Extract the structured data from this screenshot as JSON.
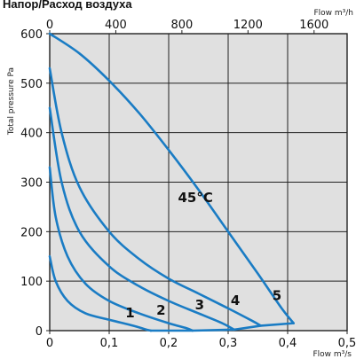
{
  "chart_data": {
    "type": "line",
    "title": "Напор/Расход воздуха",
    "ylabel": "Total pressure Pa",
    "xlabel": "Flow m³/s",
    "x2label": "Flow m³/h",
    "xlim": [
      0,
      0.5
    ],
    "ylim": [
      0,
      600
    ],
    "x2lim": [
      0,
      1800
    ],
    "x_ticks": [
      "0",
      "0,1",
      "0,2",
      "0,3",
      "0,4",
      "0,5"
    ],
    "x_tick_values": [
      0,
      0.1,
      0.2,
      0.3,
      0.4,
      0.5
    ],
    "x2_ticks": [
      "0",
      "400",
      "800",
      "1200",
      "1600"
    ],
    "x2_tick_values": [
      0,
      400,
      800,
      1200,
      1600
    ],
    "y_ticks": [
      "0",
      "100",
      "200",
      "300",
      "400",
      "500",
      "600"
    ],
    "y_tick_values": [
      0,
      100,
      200,
      300,
      400,
      500,
      600
    ],
    "grid": true,
    "series": [
      {
        "name": "1",
        "color": "#1a7cc4",
        "x": [
          0,
          0.01,
          0.03,
          0.06,
          0.1,
          0.14,
          0.16,
          0.17
        ],
        "y": [
          150,
          100,
          60,
          35,
          22,
          10,
          3,
          0
        ]
      },
      {
        "name": "2",
        "color": "#1a7cc4",
        "x": [
          0,
          0.01,
          0.03,
          0.06,
          0.1,
          0.15,
          0.2,
          0.23,
          0.24
        ],
        "y": [
          330,
          230,
          150,
          95,
          60,
          35,
          15,
          5,
          0
        ]
      },
      {
        "name": "3",
        "color": "#1a7cc4",
        "x": [
          0,
          0.02,
          0.05,
          0.1,
          0.15,
          0.2,
          0.25,
          0.29,
          0.31
        ],
        "y": [
          450,
          300,
          200,
          130,
          90,
          60,
          35,
          15,
          2
        ]
      },
      {
        "name": "4",
        "color": "#1a7cc4",
        "x": [
          0,
          0.02,
          0.05,
          0.1,
          0.15,
          0.2,
          0.25,
          0.3,
          0.34,
          0.355
        ],
        "y": [
          530,
          400,
          290,
          200,
          145,
          105,
          75,
          45,
          20,
          10
        ]
      },
      {
        "name": "5",
        "color": "#1a7cc4",
        "x": [
          0,
          0.05,
          0.1,
          0.15,
          0.2,
          0.25,
          0.3,
          0.35,
          0.39,
          0.41
        ],
        "y": [
          600,
          560,
          505,
          440,
          365,
          285,
          200,
          115,
          45,
          15
        ]
      }
    ],
    "annotations": [
      {
        "text": "1",
        "x": 0.135,
        "y": 27
      },
      {
        "text": "2",
        "x": 0.187,
        "y": 32
      },
      {
        "text": "3",
        "x": 0.252,
        "y": 43
      },
      {
        "text": "4",
        "x": 0.312,
        "y": 52
      },
      {
        "text": "5",
        "x": 0.382,
        "y": 62
      },
      {
        "text": "45°C",
        "x": 0.245,
        "y": 260
      }
    ],
    "colors": {
      "plot_background": "#e0e0e0",
      "grid": "#222222",
      "curve": "#1a7cc4"
    }
  }
}
